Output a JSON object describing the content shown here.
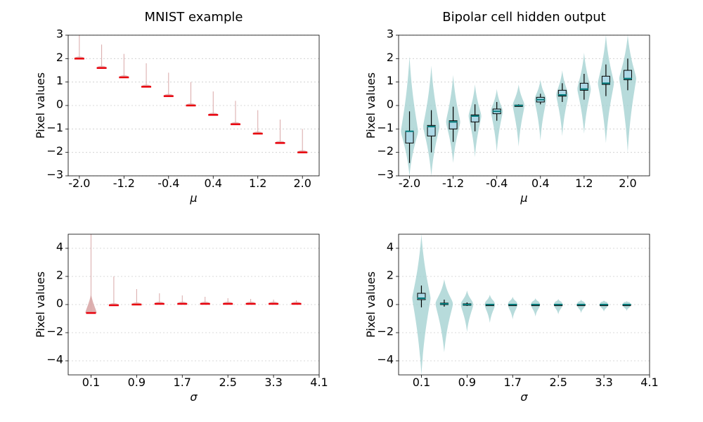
{
  "colors": {
    "mnist": "#d9a8a8",
    "mnist_median": "#e8000b",
    "bipolar": "#9fcfcf",
    "bipolar_median": "#007a7a",
    "box_fill": "#add8e6",
    "grid": "#cccccc"
  },
  "chart_data": [
    {
      "type": "violin",
      "title": "MNIST example",
      "xlabel": "μ",
      "ylabel": "Pixel values",
      "xticks": [
        "-2.0",
        "-1.2",
        "-0.4",
        "0.4",
        "1.2",
        "2.0"
      ],
      "xlim": [
        -2.2,
        2.3
      ],
      "ylim": [
        -3,
        3
      ],
      "yticks": [
        "−3",
        "−2",
        "−1",
        "0",
        "1",
        "2",
        "3"
      ],
      "grid_y": true,
      "style": "mnist",
      "series": [
        {
          "x": -2.0,
          "median": 2.0,
          "min": 2.0,
          "max": 3.0
        },
        {
          "x": -1.6,
          "median": 1.6,
          "min": 1.6,
          "max": 2.6
        },
        {
          "x": -1.2,
          "median": 1.2,
          "min": 1.2,
          "max": 2.2
        },
        {
          "x": -0.8,
          "median": 0.8,
          "min": 0.8,
          "max": 1.8
        },
        {
          "x": -0.4,
          "median": 0.4,
          "min": 0.4,
          "max": 1.4
        },
        {
          "x": 0.0,
          "median": 0.0,
          "min": 0.0,
          "max": 1.0
        },
        {
          "x": 0.4,
          "median": -0.4,
          "min": -0.4,
          "max": 0.6
        },
        {
          "x": 0.8,
          "median": -0.8,
          "min": -0.8,
          "max": 0.2
        },
        {
          "x": 1.2,
          "median": -1.2,
          "min": -1.2,
          "max": -0.2
        },
        {
          "x": 1.6,
          "median": -1.6,
          "min": -1.6,
          "max": -0.6
        },
        {
          "x": 2.0,
          "median": -2.0,
          "min": -2.0,
          "max": -1.0
        }
      ]
    },
    {
      "type": "violin",
      "title": "Bipolar cell hidden output",
      "xlabel": "μ",
      "ylabel": "Pixel values",
      "xticks": [
        "-2.0",
        "-1.2",
        "-0.4",
        "0.4",
        "1.2",
        "2.0"
      ],
      "xlim": [
        -2.2,
        2.4
      ],
      "ylim": [
        -3,
        3
      ],
      "yticks": [
        "−3",
        "−2",
        "−1",
        "0",
        "1",
        "2",
        "3"
      ],
      "grid_y": true,
      "style": "bipolar",
      "series": [
        {
          "x": -2.0,
          "median": -1.1,
          "q1": -1.6,
          "q3": -1.1,
          "min": -2.45,
          "max": -0.25,
          "vmin": -3.0,
          "vmax": 2.1
        },
        {
          "x": -1.6,
          "median": -0.9,
          "q1": -1.3,
          "q3": -0.85,
          "min": -2.0,
          "max": -0.2,
          "vmin": -3.0,
          "vmax": 1.7
        },
        {
          "x": -1.2,
          "median": -0.7,
          "q1": -1.0,
          "q3": -0.65,
          "min": -1.55,
          "max": -0.05,
          "vmin": -2.45,
          "vmax": 1.3
        },
        {
          "x": -0.8,
          "median": -0.45,
          "q1": -0.7,
          "q3": -0.4,
          "min": -1.1,
          "max": 0.05,
          "vmin": -2.2,
          "vmax": 0.9
        },
        {
          "x": -0.4,
          "median": -0.25,
          "q1": -0.35,
          "q3": -0.15,
          "min": -0.65,
          "max": 0.15,
          "vmin": -2.0,
          "vmax": 0.7
        },
        {
          "x": 0.0,
          "median": 0.0,
          "q1": -0.02,
          "q3": 0.02,
          "min": -0.05,
          "max": 0.05,
          "vmin": -1.75,
          "vmax": 0.9
        },
        {
          "x": 0.4,
          "median": 0.25,
          "q1": 0.15,
          "q3": 0.35,
          "min": 0.05,
          "max": 0.5,
          "vmin": -1.5,
          "vmax": 1.1
        },
        {
          "x": 0.8,
          "median": 0.45,
          "q1": 0.4,
          "q3": 0.65,
          "min": 0.15,
          "max": 0.95,
          "vmin": -1.3,
          "vmax": 1.5
        },
        {
          "x": 1.2,
          "median": 0.7,
          "q1": 0.65,
          "q3": 0.95,
          "min": 0.25,
          "max": 1.35,
          "vmin": -1.2,
          "vmax": 2.25
        },
        {
          "x": 1.6,
          "median": 0.95,
          "q1": 0.9,
          "q3": 1.25,
          "min": 0.4,
          "max": 1.75,
          "vmin": -1.6,
          "vmax": 3.0
        },
        {
          "x": 2.0,
          "median": 1.15,
          "q1": 1.1,
          "q3": 1.5,
          "min": 0.65,
          "max": 2.0,
          "vmin": -2.0,
          "vmax": 3.0
        }
      ]
    },
    {
      "type": "violin",
      "title": "",
      "xlabel": "σ",
      "ylabel": "Pixel values",
      "xticks": [
        "0.1",
        "0.9",
        "1.7",
        "2.5",
        "3.3",
        "4.1"
      ],
      "xlim": [
        -0.3,
        4.1
      ],
      "ylim": [
        -5,
        5
      ],
      "yticks": [
        "−4",
        "−2",
        "0",
        "2",
        "4"
      ],
      "grid_y": true,
      "style": "mnist",
      "series": [
        {
          "x": 0.1,
          "median": -0.6,
          "min": -0.6,
          "max": 5.0,
          "vmin": -0.6,
          "vmax": 0.8
        },
        {
          "x": 0.5,
          "median": -0.05,
          "min": -0.1,
          "max": 2.0,
          "vmin": -0.1,
          "vmax": 0.2
        },
        {
          "x": 0.9,
          "median": 0.0,
          "min": -0.05,
          "max": 1.1,
          "vmin": -0.05,
          "vmax": 0.1
        },
        {
          "x": 1.3,
          "median": 0.05,
          "min": 0.0,
          "max": 0.8,
          "vmin": 0.0,
          "vmax": 0.1
        },
        {
          "x": 1.7,
          "median": 0.05,
          "min": 0.0,
          "max": 0.65,
          "vmin": 0.0,
          "vmax": 0.1
        },
        {
          "x": 2.1,
          "median": 0.05,
          "min": 0.0,
          "max": 0.55,
          "vmin": 0.0,
          "vmax": 0.1
        },
        {
          "x": 2.5,
          "median": 0.05,
          "min": 0.0,
          "max": 0.45,
          "vmin": 0.0,
          "vmax": 0.1
        },
        {
          "x": 2.9,
          "median": 0.05,
          "min": 0.0,
          "max": 0.4,
          "vmin": 0.0,
          "vmax": 0.1
        },
        {
          "x": 3.3,
          "median": 0.05,
          "min": 0.0,
          "max": 0.35,
          "vmin": 0.0,
          "vmax": 0.1
        },
        {
          "x": 3.7,
          "median": 0.05,
          "min": 0.0,
          "max": 0.3,
          "vmin": 0.0,
          "vmax": 0.1
        }
      ]
    },
    {
      "type": "violin",
      "title": "",
      "xlabel": "σ",
      "ylabel": "Pixel values",
      "xticks": [
        "0.1",
        "0.9",
        "1.7",
        "2.5",
        "3.3",
        "4.1"
      ],
      "xlim": [
        -0.3,
        4.1
      ],
      "ylim": [
        -5,
        5
      ],
      "yticks": [
        "−4",
        "−2",
        "0",
        "2",
        "4"
      ],
      "grid_y": true,
      "style": "bipolar",
      "series": [
        {
          "x": 0.1,
          "median": 0.45,
          "q1": 0.35,
          "q3": 0.8,
          "min": -0.2,
          "max": 1.35,
          "vmin": -5.0,
          "vmax": 5.0
        },
        {
          "x": 0.5,
          "median": 0.05,
          "q1": 0.0,
          "q3": 0.1,
          "min": -0.15,
          "max": 0.35,
          "vmin": -3.4,
          "vmax": 1.8
        },
        {
          "x": 0.9,
          "median": 0.0,
          "q1": -0.02,
          "q3": 0.05,
          "min": -0.1,
          "max": 0.15,
          "vmin": -1.95,
          "vmax": 1.0
        },
        {
          "x": 1.3,
          "median": 0.0,
          "q1": -0.02,
          "q3": 0.02,
          "min": -0.05,
          "max": 0.05,
          "vmin": -1.3,
          "vmax": 0.7
        },
        {
          "x": 1.7,
          "median": 0.0,
          "q1": -0.02,
          "q3": 0.02,
          "min": -0.05,
          "max": 0.05,
          "vmin": -1.05,
          "vmax": 0.55
        },
        {
          "x": 2.1,
          "median": 0.0,
          "q1": -0.02,
          "q3": 0.02,
          "min": -0.05,
          "max": 0.05,
          "vmin": -0.85,
          "vmax": 0.45
        },
        {
          "x": 2.5,
          "median": 0.0,
          "q1": -0.02,
          "q3": 0.02,
          "min": -0.05,
          "max": 0.05,
          "vmin": -0.7,
          "vmax": 0.4
        },
        {
          "x": 2.9,
          "median": 0.0,
          "q1": -0.02,
          "q3": 0.02,
          "min": -0.05,
          "max": 0.05,
          "vmin": -0.6,
          "vmax": 0.35
        },
        {
          "x": 3.3,
          "median": 0.0,
          "q1": -0.02,
          "q3": 0.02,
          "min": -0.05,
          "max": 0.05,
          "vmin": -0.5,
          "vmax": 0.3
        },
        {
          "x": 3.7,
          "median": 0.0,
          "q1": -0.02,
          "q3": 0.02,
          "min": -0.05,
          "max": 0.05,
          "vmin": -0.45,
          "vmax": 0.25
        }
      ]
    }
  ]
}
